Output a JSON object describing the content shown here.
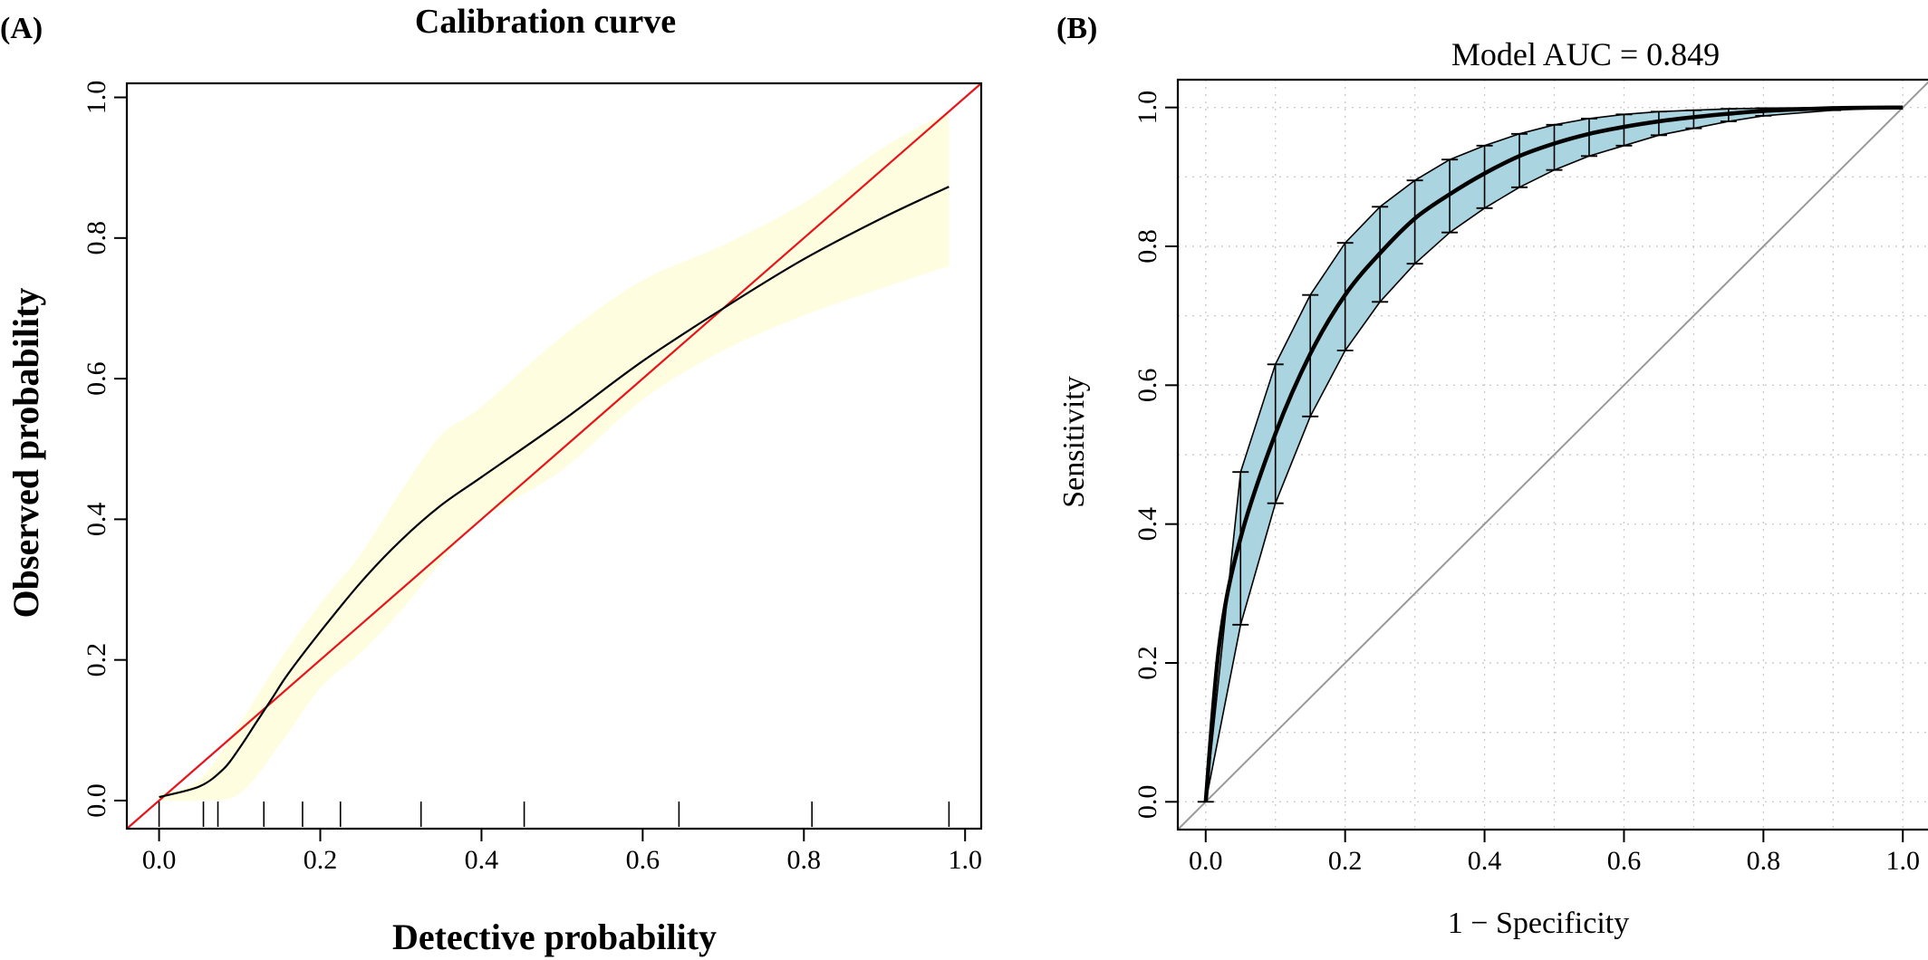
{
  "panel_a": {
    "letter": "(A)",
    "chart_data": {
      "type": "line",
      "title": "Calibration curve",
      "xlabel": "Detective probability",
      "ylabel": "Observed probability",
      "xlim": [
        -0.04,
        1.02
      ],
      "ylim": [
        -0.04,
        1.02
      ],
      "x_ticks": [
        "0.0",
        "0.2",
        "0.4",
        "0.6",
        "0.8",
        "1.0"
      ],
      "y_ticks": [
        "0.0",
        "0.2",
        "0.4",
        "0.6",
        "0.8",
        "1.0"
      ],
      "grid": false,
      "colors": {
        "ideal": "#e8141b",
        "curve": "#000000",
        "band": "#fffde0"
      },
      "ideal_line": {
        "x": [
          -0.04,
          1.02
        ],
        "y": [
          -0.04,
          1.02
        ]
      },
      "series": [
        {
          "x": [
            0.0,
            0.05,
            0.08,
            0.1,
            0.12,
            0.14,
            0.16,
            0.2,
            0.25,
            0.3,
            0.35,
            0.4,
            0.5,
            0.6,
            0.7,
            0.8,
            0.9,
            0.98
          ],
          "y": [
            0.005,
            0.02,
            0.045,
            0.075,
            0.11,
            0.145,
            0.18,
            0.24,
            0.31,
            0.37,
            0.42,
            0.46,
            0.54,
            0.625,
            0.7,
            0.77,
            0.83,
            0.873
          ]
        }
      ],
      "confidence_band": {
        "x": [
          0.0,
          0.05,
          0.1,
          0.15,
          0.2,
          0.25,
          0.3,
          0.35,
          0.4,
          0.5,
          0.6,
          0.7,
          0.8,
          0.9,
          0.98
        ],
        "lower": [
          0.0,
          0.0,
          0.01,
          0.08,
          0.16,
          0.21,
          0.27,
          0.34,
          0.4,
          0.47,
          0.57,
          0.64,
          0.69,
          0.73,
          0.76
        ],
        "upper": [
          0.01,
          0.03,
          0.11,
          0.2,
          0.28,
          0.35,
          0.44,
          0.52,
          0.56,
          0.66,
          0.74,
          0.79,
          0.85,
          0.93,
          0.98
        ]
      },
      "rug": [
        0.0,
        0.055,
        0.073,
        0.13,
        0.178,
        0.225,
        0.325,
        0.453,
        0.645,
        0.81,
        0.98
      ]
    }
  },
  "panel_b": {
    "letter": "(B)",
    "chart_data": {
      "type": "line",
      "title": "Model  AUC =  0.849",
      "xlabel": "1 − Specificity",
      "ylabel": "Sensitivity",
      "xlim": [
        -0.04,
        1.04
      ],
      "ylim": [
        -0.04,
        1.04
      ],
      "x_ticks": [
        "0.0",
        "0.2",
        "0.4",
        "0.6",
        "0.8",
        "1.0"
      ],
      "y_ticks": [
        "0.0",
        "0.2",
        "0.4",
        "0.6",
        "0.8",
        "1.0"
      ],
      "grid": true,
      "colors": {
        "band": "#a9d4e0",
        "curve": "#000000",
        "diagonal": "#999999",
        "grid": "#cccccc"
      },
      "diagonal": {
        "x": [
          -0.04,
          1.04
        ],
        "y": [
          -0.04,
          1.04
        ]
      },
      "series": [
        {
          "x": [
            0.0,
            0.02,
            0.05,
            0.1,
            0.15,
            0.2,
            0.25,
            0.3,
            0.35,
            0.4,
            0.45,
            0.5,
            0.55,
            0.6,
            0.65,
            0.7,
            0.75,
            0.8,
            0.9,
            1.0
          ],
          "y": [
            0.0,
            0.23,
            0.38,
            0.53,
            0.645,
            0.73,
            0.79,
            0.84,
            0.875,
            0.905,
            0.93,
            0.948,
            0.962,
            0.972,
            0.98,
            0.986,
            0.991,
            0.995,
            0.999,
            1.0
          ]
        }
      ],
      "confidence_band": {
        "x": [
          0.0,
          0.05,
          0.1,
          0.15,
          0.2,
          0.25,
          0.3,
          0.35,
          0.4,
          0.45,
          0.5,
          0.55,
          0.6,
          0.65,
          0.7,
          0.75,
          0.8,
          0.9,
          1.0
        ],
        "lower": [
          0.0,
          0.255,
          0.43,
          0.555,
          0.65,
          0.72,
          0.775,
          0.82,
          0.855,
          0.885,
          0.91,
          0.93,
          0.945,
          0.96,
          0.97,
          0.98,
          0.988,
          0.996,
          1.0
        ],
        "upper": [
          0.0,
          0.475,
          0.63,
          0.73,
          0.805,
          0.857,
          0.895,
          0.925,
          0.945,
          0.962,
          0.975,
          0.984,
          0.99,
          0.994,
          0.996,
          0.998,
          0.999,
          1.0,
          1.0
        ]
      }
    }
  }
}
